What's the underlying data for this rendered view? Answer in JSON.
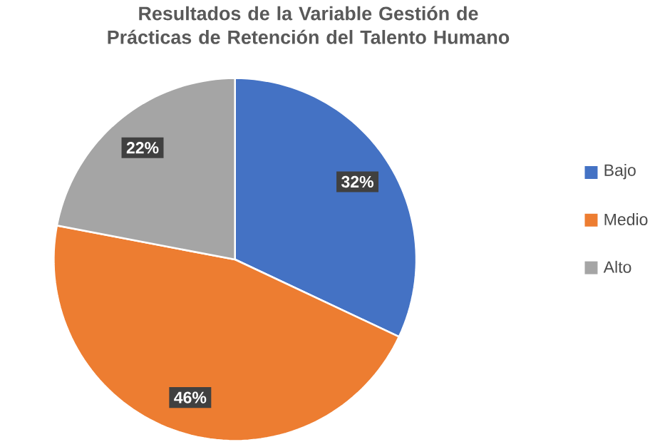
{
  "chart_data": {
    "type": "pie",
    "title": "Resultados  de la Variable Gestión de Prácticas de Retención del Talento Humano",
    "categories": [
      "Bajo",
      "Medio",
      "Alto"
    ],
    "values": [
      32,
      46,
      22
    ],
    "colors": [
      "#4472c4",
      "#ed7d31",
      "#a5a5a5"
    ],
    "value_labels": [
      "32%",
      "46%",
      "22%"
    ],
    "legend": "right"
  }
}
